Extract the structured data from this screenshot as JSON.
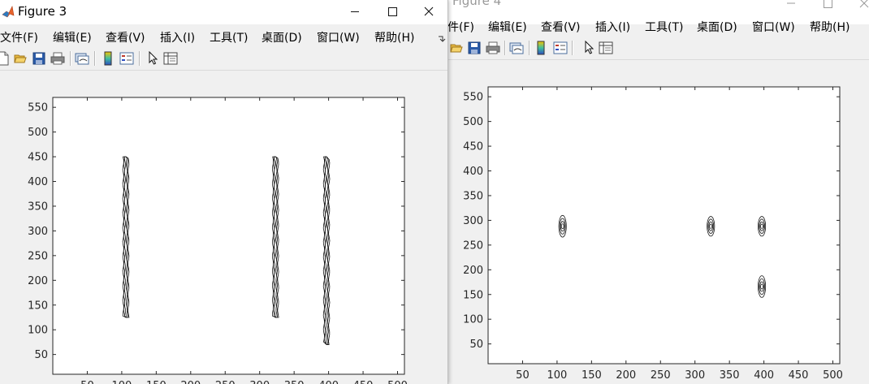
{
  "figure4": {
    "title": "Figure 4",
    "menu": [
      "件(F)",
      "编辑(E)",
      "查看(V)",
      "插入(I)",
      "工具(T)",
      "桌面(D)",
      "窗口(W)",
      "帮助(H)"
    ],
    "toolbar_icons": [
      "open-icon",
      "save-icon",
      "print-icon",
      "link-plot-icon",
      "colorbar-icon",
      "legend-icon",
      "pointer-icon",
      "property-editor-icon"
    ],
    "chart_data": {
      "type": "contour",
      "x_ticks": [
        50,
        100,
        150,
        200,
        250,
        300,
        350,
        400,
        450,
        500
      ],
      "y_ticks": [
        50,
        100,
        150,
        200,
        250,
        300,
        350,
        400,
        450,
        500,
        550
      ],
      "xlim": [
        0,
        510
      ],
      "ylim": [
        10,
        570
      ],
      "blobs": [
        {
          "x": 108,
          "y_center": 288,
          "y_half": 22
        },
        {
          "x": 323,
          "y_center": 288,
          "y_half": 20
        },
        {
          "x": 397,
          "y_center": 288,
          "y_half": 20
        },
        {
          "x": 397,
          "y_center": 166,
          "y_half": 22
        }
      ]
    }
  },
  "figure3": {
    "title": "Figure 3",
    "menu": [
      "文件(F)",
      "编辑(E)",
      "查看(V)",
      "插入(I)",
      "工具(T)",
      "桌面(D)",
      "窗口(W)",
      "帮助(H)"
    ],
    "toolbar_icons": [
      "new-figure-icon",
      "open-icon",
      "save-icon",
      "print-icon",
      "link-plot-icon",
      "colorbar-icon",
      "legend-icon",
      "pointer-icon",
      "property-editor-icon"
    ],
    "chart_data": {
      "type": "contour",
      "x_ticks": [
        50,
        100,
        150,
        200,
        250,
        300,
        350,
        400,
        450,
        500
      ],
      "y_ticks": [
        50,
        100,
        150,
        200,
        250,
        300,
        350,
        400,
        450,
        500,
        550
      ],
      "xlim": [
        0,
        510
      ],
      "ylim": [
        10,
        570
      ],
      "bands": [
        {
          "x": 106,
          "y_min": 125,
          "y_max": 450
        },
        {
          "x": 323,
          "y_min": 125,
          "y_max": 450
        },
        {
          "x": 397,
          "y_min": 70,
          "y_max": 450
        }
      ]
    }
  }
}
